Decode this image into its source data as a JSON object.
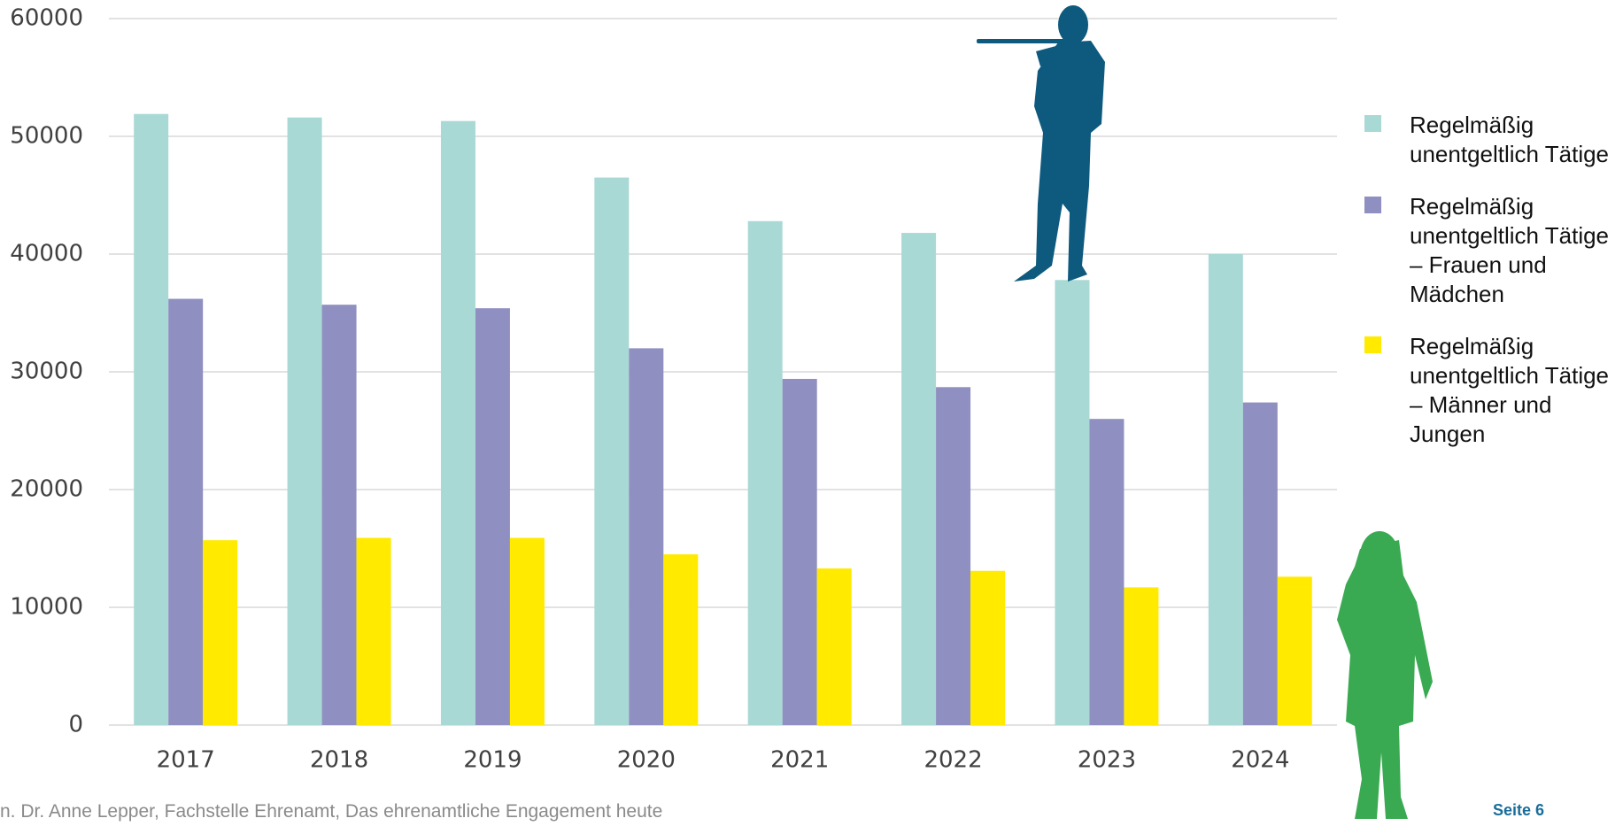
{
  "chart_data": {
    "type": "bar",
    "categories": [
      "2017",
      "2018",
      "2019",
      "2020",
      "2021",
      "2022",
      "2023",
      "2024"
    ],
    "series": [
      {
        "name": "Regelmäßig unentgeltlich Tätige",
        "color": "#a9d9d5",
        "values": [
          51900,
          51600,
          51300,
          46500,
          42800,
          41800,
          37800,
          40000
        ]
      },
      {
        "name": "Regelmäßig unentgeltlich Tätige – Frauen und Mädchen",
        "color": "#8f8fc1",
        "values": [
          36200,
          35700,
          35400,
          32000,
          29400,
          28700,
          26000,
          27400
        ]
      },
      {
        "name": "Regelmäßig unentgeltlich Tätige – Männer und Jungen",
        "color": "#ffea00",
        "values": [
          15700,
          15900,
          15900,
          14500,
          13300,
          13100,
          11700,
          12600
        ]
      }
    ],
    "ylim": [
      0,
      60000
    ],
    "yticks": [
      0,
      10000,
      20000,
      30000,
      40000,
      50000,
      60000
    ],
    "grid": true,
    "legend": "right"
  },
  "footer": {
    "text": "n. Dr. Anne Lepper, Fachstelle Ehrenamt, Das ehrenamtliche Engagement heute",
    "page": "Seite 6"
  }
}
